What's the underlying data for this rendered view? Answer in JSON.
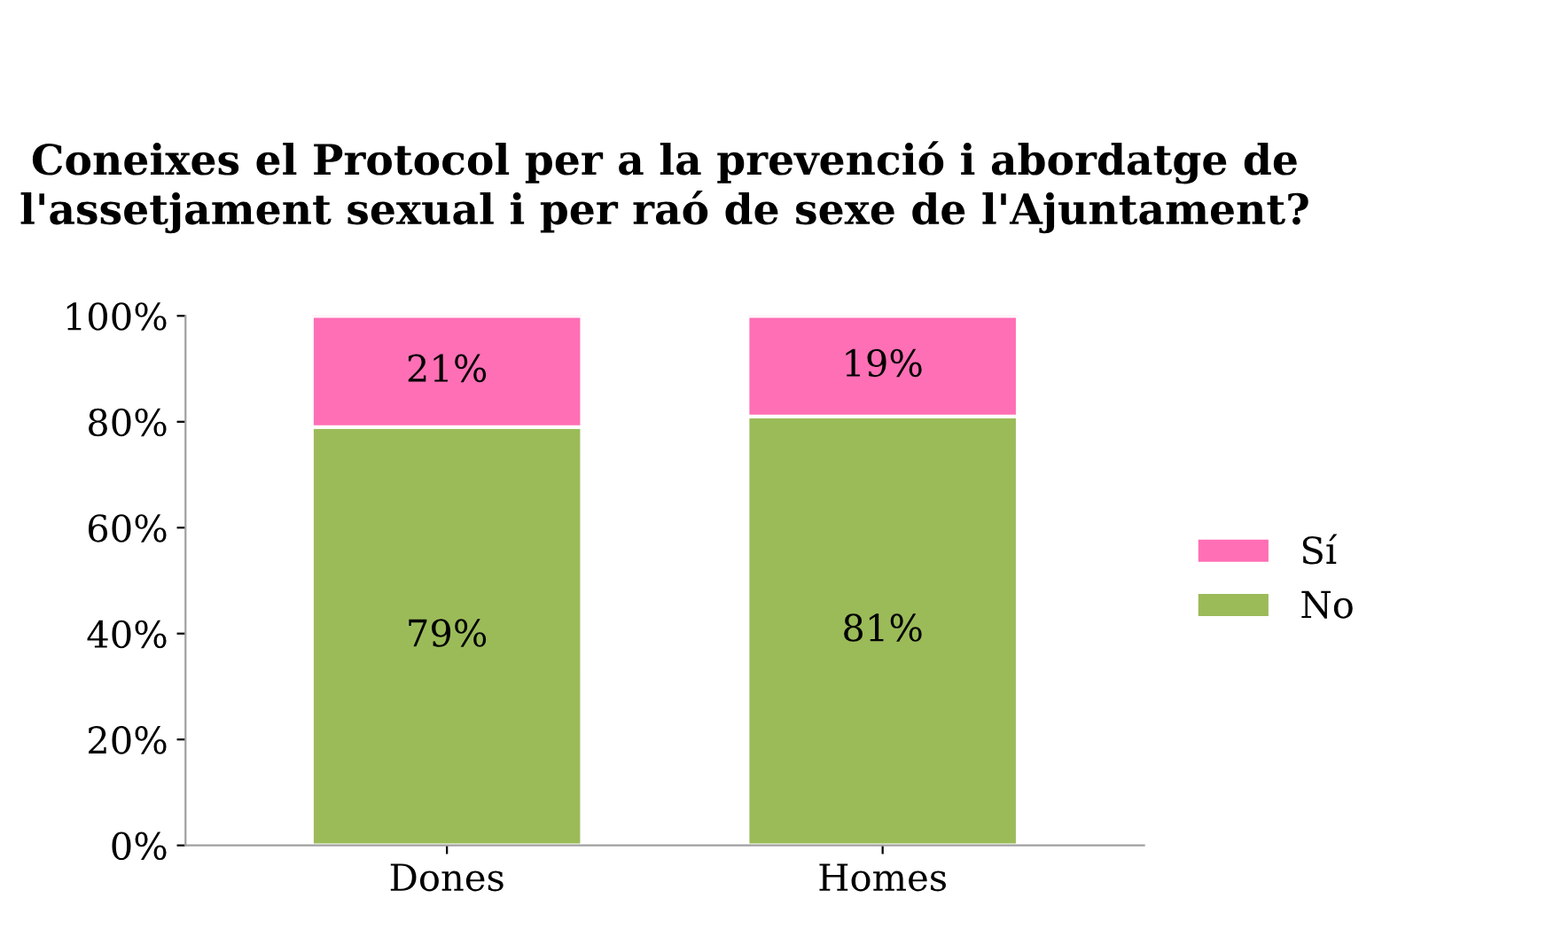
{
  "chart_data": {
    "type": "bar",
    "stacked": true,
    "title": "Coneixes el Protocol per a la prevenció i abordatge de l'assetjament sexual i per raó de sexe de l'Ajuntament?",
    "categories": [
      "Dones",
      "Homes"
    ],
    "series": [
      {
        "name": "No",
        "color": "#9bbb59",
        "values": [
          79,
          81
        ],
        "value_labels": [
          "79%",
          "81%"
        ]
      },
      {
        "name": "Sí",
        "color": "#ff6fb5",
        "values": [
          21,
          19
        ],
        "value_labels": [
          "21%",
          "19%"
        ]
      }
    ],
    "ylim": [
      0,
      100
    ],
    "yticks": [
      {
        "value": 0,
        "label": "0%"
      },
      {
        "value": 20,
        "label": "20%"
      },
      {
        "value": 40,
        "label": "40%"
      },
      {
        "value": 60,
        "label": "60%"
      },
      {
        "value": 80,
        "label": "80%"
      },
      {
        "value": 100,
        "label": "100%"
      }
    ],
    "legend": "right",
    "grid": false
  }
}
